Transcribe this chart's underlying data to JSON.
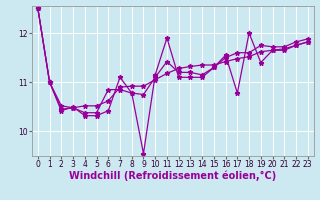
{
  "xlabel": "Windchill (Refroidissement éolien,°C)",
  "background_color": "#cce8f0",
  "line_color": "#990099",
  "grid_color": "#ffffff",
  "xlim": [
    -0.5,
    23.5
  ],
  "ylim": [
    9.5,
    12.55
  ],
  "yticks": [
    10,
    11,
    12
  ],
  "xticks": [
    0,
    1,
    2,
    3,
    4,
    5,
    6,
    7,
    8,
    9,
    10,
    11,
    12,
    13,
    14,
    15,
    16,
    17,
    18,
    19,
    20,
    21,
    22,
    23
  ],
  "series": [
    [
      12.5,
      11.0,
      10.42,
      10.5,
      10.32,
      10.32,
      10.42,
      11.1,
      10.78,
      9.55,
      11.15,
      11.9,
      11.1,
      11.1,
      11.1,
      11.3,
      11.55,
      10.78,
      12.0,
      11.4,
      11.65,
      11.65,
      11.75,
      11.82
    ],
    [
      12.5,
      11.0,
      10.52,
      10.48,
      10.38,
      10.38,
      10.85,
      10.85,
      10.78,
      10.75,
      11.1,
      11.42,
      11.2,
      11.2,
      11.15,
      11.3,
      11.5,
      11.6,
      11.6,
      11.75,
      11.72,
      11.72,
      11.82,
      11.88
    ],
    [
      12.5,
      11.0,
      10.45,
      10.48,
      10.52,
      10.52,
      10.62,
      10.9,
      10.92,
      10.92,
      11.05,
      11.18,
      11.28,
      11.32,
      11.35,
      11.35,
      11.42,
      11.48,
      11.52,
      11.62,
      11.65,
      11.68,
      11.75,
      11.82
    ]
  ],
  "marker": "*",
  "markersize": 3.5,
  "linewidth": 0.9,
  "tick_fontsize": 5.5,
  "label_fontsize": 7.0
}
